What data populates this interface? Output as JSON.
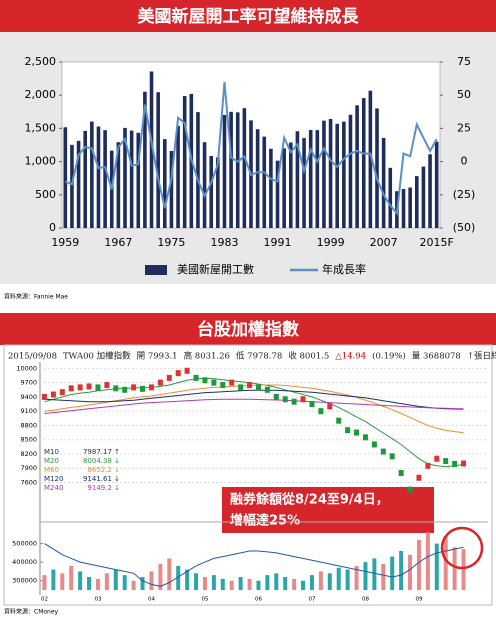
{
  "chart_data": [
    {
      "type": "bar_line",
      "title": "美國新屋開工率可望維持成長",
      "source": "資料來源：Fannie Mae",
      "categories": [
        "1959",
        null,
        null,
        null,
        null,
        null,
        null,
        null,
        "1967",
        null,
        null,
        null,
        null,
        null,
        null,
        null,
        "1975",
        null,
        null,
        null,
        null,
        null,
        null,
        null,
        "1983",
        null,
        null,
        null,
        null,
        null,
        null,
        null,
        "1991",
        null,
        null,
        null,
        null,
        null,
        null,
        null,
        "1999",
        null,
        null,
        null,
        null,
        null,
        null,
        null,
        "2007",
        null,
        null,
        null,
        null,
        null,
        null,
        null,
        "2015F"
      ],
      "series": [
        {
          "name": "美國新屋開工數",
          "color": "#1f2d5c",
          "values": [
            1517,
            1252,
            1313,
            1463,
            1603,
            1529,
            1473,
            1165,
            1292,
            1508,
            1467,
            1434,
            2052,
            2357,
            2045,
            1338,
            1160,
            1538,
            1987,
            2020,
            1745,
            1292,
            1084,
            1062,
            1703,
            1750,
            1742,
            1805,
            1621,
            1488,
            1376,
            1193,
            1014,
            1200,
            1288,
            1457,
            1354,
            1477,
            1474,
            1617,
            1641,
            1569,
            1603,
            1705,
            1848,
            1956,
            2068,
            1801,
            1355,
            906,
            554,
            587,
            609,
            781,
            925,
            1110,
            1300
          ]
        },
        {
          "name": "年成長率",
          "color": "#5b8fc7",
          "axis": "y2",
          "values": [
            -15,
            -17,
            5,
            11,
            10,
            -5,
            -4,
            -21,
            11,
            17,
            -3,
            -2,
            43,
            15,
            -13,
            -35,
            -13,
            33,
            29,
            2,
            -14,
            -26,
            -16,
            -2,
            60,
            3,
            0,
            4,
            -10,
            -8,
            -8,
            -13,
            -15,
            18,
            7,
            13,
            -7,
            9,
            0,
            10,
            1,
            -4,
            2,
            6,
            8,
            6,
            6,
            -13,
            -25,
            -33,
            -39,
            6,
            4,
            28,
            18,
            8,
            17
          ]
        }
      ],
      "ylim": [
        0,
        2500
      ],
      "yticks": [
        0,
        500,
        {
          "value": 1000,
          "label": "1,000"
        },
        {
          "value": 1500,
          "label": "1,500"
        },
        {
          "value": 2000,
          "label": "2,000"
        },
        {
          "value": 2500,
          "label": "2,500"
        }
      ],
      "y2lim": [
        -50,
        75
      ],
      "y2ticks": [
        {
          "value": -50,
          "label": "(50)"
        },
        {
          "value": -25,
          "label": "(25)"
        },
        0,
        25,
        50,
        75
      ],
      "legend": "bottom"
    },
    {
      "type": "stock",
      "title": "台股加權指數",
      "source": "資料來源：CMoney",
      "info": [
        "2015/09/08",
        "TWA00 加權指數",
        "開 7993.1",
        "高 8031.26",
        "低 7978.78",
        "收 8001.5",
        "△14.94",
        "(0.19%)",
        "量 3688078",
        "↑張日終"
      ],
      "categories": [
        "02",
        null,
        null,
        null,
        null,
        null,
        "03",
        null,
        null,
        null,
        null,
        null,
        "04",
        null,
        null,
        null,
        null,
        null,
        "05",
        null,
        null,
        null,
        null,
        null,
        "06",
        null,
        null,
        null,
        null,
        null,
        "07",
        null,
        null,
        null,
        null,
        null,
        "08",
        null,
        null,
        null,
        null,
        null,
        "09",
        null,
        null,
        null,
        null,
        null
      ],
      "close": [
        9400,
        9450,
        9500,
        9580,
        9600,
        9620,
        9600,
        9650,
        9580,
        9550,
        9600,
        9570,
        9600,
        9700,
        9800,
        9900,
        9950,
        9800,
        9750,
        9700,
        9650,
        9700,
        9600,
        9650,
        9600,
        9550,
        9400,
        9350,
        9300,
        9350,
        9250,
        9100,
        9200,
        8900,
        8700,
        8650,
        8550,
        8400,
        8250,
        8150,
        7800,
        7450,
        7700,
        7950,
        8100,
        8050,
        7990,
        8000
      ],
      "series": [
        {
          "name": "M20",
          "value_label": "8004.38 ↓",
          "color": "#2e9a3c",
          "values": [
            9300,
            9350,
            9400,
            9450,
            9480,
            9500,
            9530,
            9550,
            9570,
            9580,
            9590,
            9590,
            9600,
            9620,
            9650,
            9700,
            9750,
            9780,
            9790,
            9780,
            9760,
            9740,
            9720,
            9700,
            9670,
            9640,
            9600,
            9550,
            9500,
            9450,
            9400,
            9330,
            9260,
            9180,
            9080,
            8980,
            8880,
            8760,
            8640,
            8520,
            8400,
            8250,
            8100,
            7990,
            7950,
            7930,
            7950,
            7980
          ]
        },
        {
          "name": "M60",
          "value_label": "8652.2 ↓",
          "color": "#e8902a",
          "values": [
            9100,
            9120,
            9150,
            9180,
            9200,
            9230,
            9260,
            9290,
            9320,
            9350,
            9380,
            9400,
            9420,
            9450,
            9480,
            9510,
            9540,
            9560,
            9580,
            9600,
            9610,
            9620,
            9630,
            9640,
            9650,
            9650,
            9650,
            9640,
            9620,
            9600,
            9580,
            9550,
            9520,
            9480,
            9440,
            9390,
            9330,
            9270,
            9200,
            9130,
            9050,
            8970,
            8880,
            8800,
            8740,
            8700,
            8670,
            8650
          ]
        },
        {
          "name": "M120",
          "value_label": "9141.61 ↓",
          "color": "#1c2f6e",
          "values": [
            9350,
            9340,
            9330,
            9320,
            9310,
            9300,
            9300,
            9300,
            9310,
            9320,
            9330,
            9350,
            9370,
            9390,
            9410,
            9430,
            9450,
            9470,
            9490,
            9500,
            9510,
            9520,
            9530,
            9540,
            9540,
            9540,
            9540,
            9530,
            9520,
            9510,
            9500,
            9480,
            9460,
            9440,
            9420,
            9400,
            9380,
            9350,
            9320,
            9290,
            9260,
            9230,
            9200,
            9180,
            9160,
            9150,
            9145,
            9140
          ]
        },
        {
          "name": "M240",
          "value_label": "9149.2 ↓",
          "color": "#b03ab8",
          "values": [
            9050,
            9070,
            9090,
            9110,
            9130,
            9150,
            9170,
            9190,
            9210,
            9230,
            9250,
            9270,
            9280,
            9290,
            9300,
            9310,
            9320,
            9330,
            9340,
            9345,
            9350,
            9350,
            9350,
            9350,
            9345,
            9340,
            9335,
            9330,
            9320,
            9310,
            9300,
            9290,
            9280,
            9270,
            9260,
            9250,
            9240,
            9230,
            9220,
            9210,
            9200,
            9190,
            9180,
            9170,
            9165,
            9160,
            9155,
            9150
          ]
        }
      ],
      "m10": {
        "name": "M10",
        "value_label": "7987.17 ↑",
        "color": "#333333"
      },
      "ylim": [
        7400,
        10050
      ],
      "yticks": [
        7600,
        7900,
        8200,
        8500,
        8800,
        9100,
        9400,
        9700,
        10000
      ],
      "volume": {
        "values": [
          330000,
          360000,
          340000,
          380000,
          350000,
          320000,
          310000,
          340000,
          360000,
          330000,
          300000,
          320000,
          350000,
          390000,
          420000,
          380000,
          360000,
          340000,
          320000,
          330000,
          310000,
          300000,
          320000,
          310000,
          300000,
          330000,
          340000,
          320000,
          310000,
          300000,
          330000,
          350000,
          340000,
          370000,
          360000,
          380000,
          400000,
          420000,
          390000,
          430000,
          460000,
          440000,
          520000,
          560000,
          500000,
          540000,
          480000,
          470000
        ],
        "colors": [
          "#e88a8a",
          "#2ba6a8",
          "#e88a8a",
          "#e88a8a",
          "#2ba6a8",
          "#2ba6a8",
          "#e88a8a",
          "#e88a8a",
          "#2ba6a8",
          "#2ba6a8",
          "#e88a8a",
          "#2ba6a8",
          "#e88a8a",
          "#e88a8a",
          "#e88a8a",
          "#2ba6a8",
          "#2ba6a8",
          "#2ba6a8",
          "#e88a8a",
          "#2ba6a8",
          "#2ba6a8",
          "#e88a8a",
          "#2ba6a8",
          "#e88a8a",
          "#2ba6a8",
          "#2ba6a8",
          "#2ba6a8",
          "#2ba6a8",
          "#e88a8a",
          "#2ba6a8",
          "#2ba6a8",
          "#e88a8a",
          "#2ba6a8",
          "#2ba6a8",
          "#2ba6a8",
          "#e88a8a",
          "#2ba6a8",
          "#2ba6a8",
          "#e88a8a",
          "#2ba6a8",
          "#2ba6a8",
          "#e88a8a",
          "#e88a8a",
          "#e88a8a",
          "#2ba6a8",
          "#e88a8a",
          "#e88a8a",
          "#e88a8a"
        ],
        "line_color": "#2255aa",
        "line": [
          500000,
          470000,
          440000,
          420000,
          400000,
          390000,
          380000,
          370000,
          360000,
          350000,
          340000,
          300000,
          280000,
          270000,
          290000,
          320000,
          350000,
          380000,
          400000,
          420000,
          430000,
          440000,
          450000,
          460000,
          460000,
          455000,
          450000,
          440000,
          430000,
          420000,
          410000,
          400000,
          390000,
          380000,
          370000,
          360000,
          350000,
          340000,
          330000,
          320000,
          330000,
          360000,
          400000,
          430000,
          450000,
          460000,
          470000,
          480000
        ],
        "ylim": [
          250000,
          600000
        ],
        "yticks": [
          300000,
          400000,
          500000
        ]
      },
      "annotation": [
        "融券餘額從8/24至9/4日，",
        "增幅達25%"
      ]
    }
  ]
}
